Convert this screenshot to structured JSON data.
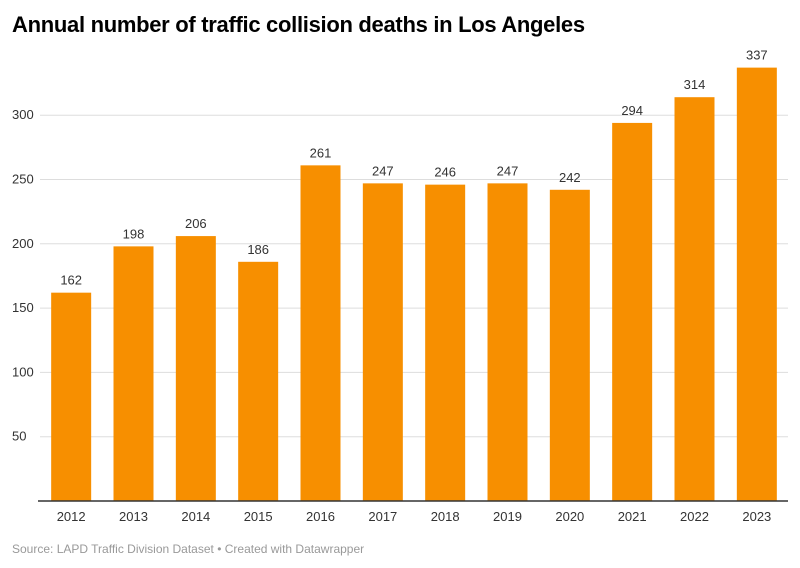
{
  "chart_data": {
    "type": "bar",
    "title": "Annual number of traffic collision deaths in Los Angeles",
    "categories": [
      "2012",
      "2013",
      "2014",
      "2015",
      "2016",
      "2017",
      "2018",
      "2019",
      "2020",
      "2021",
      "2022",
      "2023"
    ],
    "values": [
      162,
      198,
      206,
      186,
      261,
      247,
      246,
      247,
      242,
      294,
      314,
      337
    ],
    "xlabel": "",
    "ylabel": "",
    "ylim": [
      0,
      340
    ],
    "yticks": [
      50,
      100,
      150,
      200,
      250,
      300
    ],
    "grid": true,
    "data_labels": true,
    "bar_color": "#f78f00",
    "source": "Source: LAPD Traffic Division Dataset • Created with Datawrapper"
  }
}
